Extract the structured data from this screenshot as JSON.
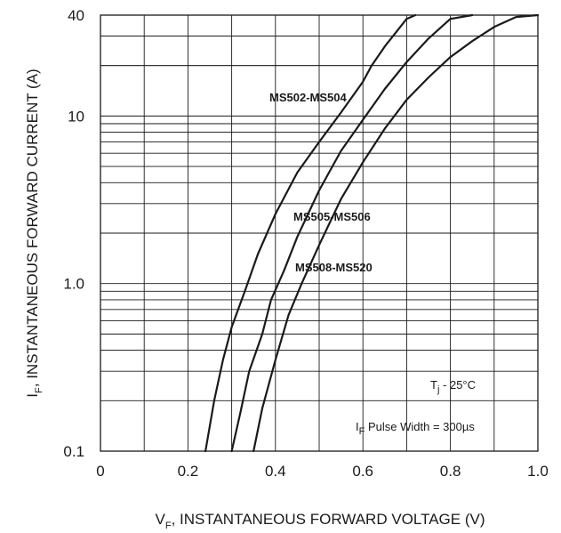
{
  "chart_data": {
    "type": "line",
    "x_scale": "linear",
    "y_scale": "log",
    "xlim": [
      0,
      1.0
    ],
    "ylim": [
      0.1,
      40
    ],
    "grid": true,
    "x_ticks": [
      "0",
      "0.2",
      "0.4",
      "0.6",
      "0.8",
      "1.0"
    ],
    "y_ticks": [
      {
        "value": 40,
        "label": "40"
      },
      {
        "value": 10,
        "label": "10"
      },
      {
        "value": 1,
        "label": "1.0"
      },
      {
        "value": 0.1,
        "label": "0.1"
      }
    ],
    "xlabel": {
      "main": "V",
      "sub": "F",
      "rest": ", INSTANTANEOUS FORWARD VOLTAGE (V)"
    },
    "ylabel": {
      "main": "I",
      "sub": "F",
      "rest": ", INSTANTANEOUS FORWARD CURRENT (A)"
    },
    "series": [
      {
        "name": "MS502-MS504",
        "points": [
          [
            0.24,
            0.1
          ],
          [
            0.26,
            0.2
          ],
          [
            0.28,
            0.35
          ],
          [
            0.3,
            0.55
          ],
          [
            0.33,
            0.9
          ],
          [
            0.36,
            1.5
          ],
          [
            0.4,
            2.6
          ],
          [
            0.45,
            4.6
          ],
          [
            0.5,
            7.0
          ],
          [
            0.55,
            10.5
          ],
          [
            0.6,
            16
          ],
          [
            0.62,
            20
          ],
          [
            0.65,
            26
          ],
          [
            0.7,
            38
          ],
          [
            0.72,
            44
          ]
        ]
      },
      {
        "name": "MS505-MS506",
        "points": [
          [
            0.3,
            0.1
          ],
          [
            0.32,
            0.17
          ],
          [
            0.34,
            0.3
          ],
          [
            0.37,
            0.5
          ],
          [
            0.39,
            0.8
          ],
          [
            0.42,
            1.2
          ],
          [
            0.45,
            1.9
          ],
          [
            0.5,
            3.6
          ],
          [
            0.55,
            6.2
          ],
          [
            0.6,
            9.5
          ],
          [
            0.65,
            14.5
          ],
          [
            0.7,
            21
          ],
          [
            0.75,
            29
          ],
          [
            0.8,
            38
          ],
          [
            0.85,
            43
          ]
        ]
      },
      {
        "name": "MS508-MS520",
        "points": [
          [
            0.35,
            0.1
          ],
          [
            0.37,
            0.18
          ],
          [
            0.4,
            0.35
          ],
          [
            0.43,
            0.65
          ],
          [
            0.46,
            1.0
          ],
          [
            0.5,
            1.7
          ],
          [
            0.55,
            3.2
          ],
          [
            0.6,
            5.3
          ],
          [
            0.65,
            8.4
          ],
          [
            0.7,
            12.5
          ],
          [
            0.75,
            17
          ],
          [
            0.8,
            22.5
          ],
          [
            0.85,
            28
          ],
          [
            0.9,
            34
          ],
          [
            0.95,
            39
          ],
          [
            1.0,
            42
          ]
        ]
      }
    ],
    "series_labels": [
      "MS502-MS504",
      "MS505-MS506",
      "MS508-MS520"
    ],
    "annotations": {
      "tj": {
        "main": "T",
        "sub": "j",
        "rest": " - 25°C"
      },
      "pulse": {
        "main": "I",
        "sub": "F",
        "rest": " Pulse Width = 300µs"
      }
    }
  }
}
